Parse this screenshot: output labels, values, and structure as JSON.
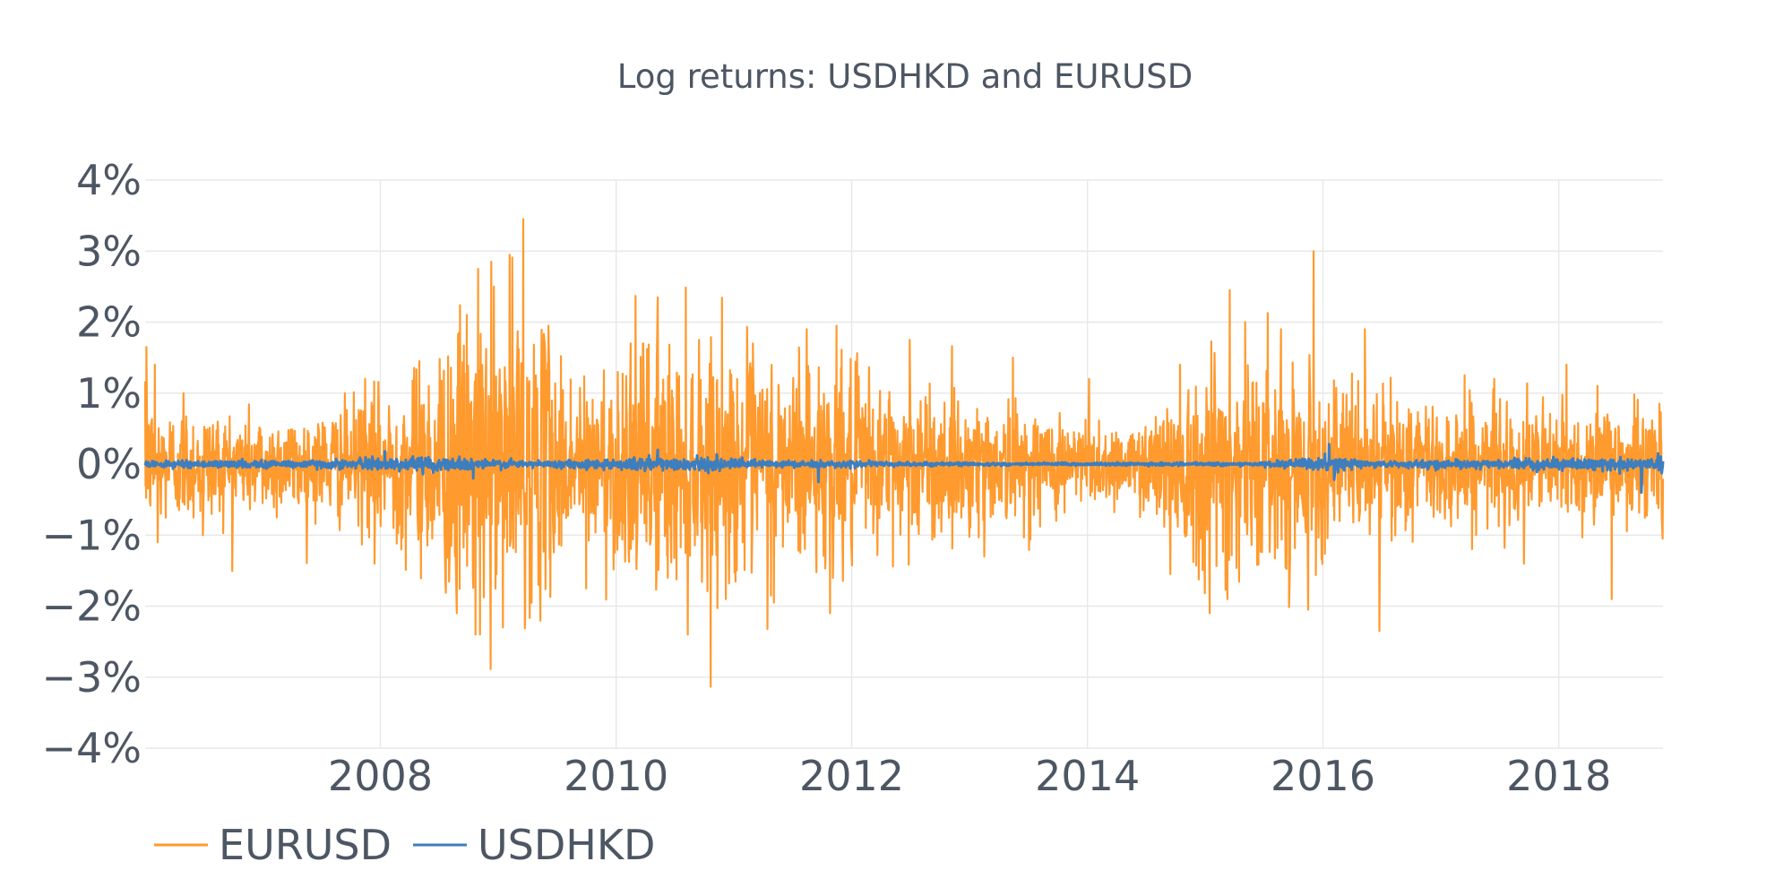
{
  "chart_data": {
    "type": "line",
    "title": "Log returns: USDHKD and EURUSD",
    "xlabel": "",
    "ylabel": "",
    "x_range": [
      "2006-01-02",
      "2018-11-20"
    ],
    "ylim": [
      -4,
      4
    ],
    "y_tick_values": [
      4,
      3,
      2,
      1,
      0,
      -1,
      -2,
      -3,
      -4
    ],
    "y_tick_labels": [
      "4%",
      "3%",
      "2%",
      "1%",
      "0%",
      "−1%",
      "−2%",
      "−3%",
      "−4%"
    ],
    "x_tick_values": [
      "2008-01-01",
      "2010-01-01",
      "2012-01-01",
      "2014-01-01",
      "2016-01-01",
      "2018-01-01"
    ],
    "x_tick_labels": [
      "2008",
      "2010",
      "2012",
      "2014",
      "2016",
      "2018"
    ],
    "grid": true,
    "legend_position": "bottom-left",
    "colors": {
      "EURUSD": "#ff9a2e",
      "USDHKD": "#3d7ebf"
    },
    "series": [
      {
        "name": "EURUSD",
        "vol_profile": [
          [
            "2006-01-02",
            0.42
          ],
          [
            "2007-06-01",
            0.33
          ],
          [
            "2008-03-01",
            0.55
          ],
          [
            "2008-09-01",
            0.95
          ],
          [
            "2009-03-01",
            1.05
          ],
          [
            "2009-09-01",
            0.6
          ],
          [
            "2010-05-01",
            0.85
          ],
          [
            "2011-08-01",
            0.75
          ],
          [
            "2012-06-01",
            0.55
          ],
          [
            "2013-06-01",
            0.4
          ],
          [
            "2014-06-01",
            0.25
          ],
          [
            "2015-01-15",
            0.8
          ],
          [
            "2015-08-01",
            0.65
          ],
          [
            "2016-06-01",
            0.5
          ],
          [
            "2017-06-01",
            0.4
          ],
          [
            "2018-11-20",
            0.38
          ]
        ],
        "spikes": [
          [
            "2006-01-06",
            1.65
          ],
          [
            "2006-02-01",
            1.4
          ],
          [
            "2006-02-10",
            -1.1
          ],
          [
            "2006-05-01",
            1.0
          ],
          [
            "2006-07-01",
            -1.0
          ],
          [
            "2007-11-15",
            1.2
          ],
          [
            "2007-12-15",
            -1.4
          ],
          [
            "2008-05-01",
            1.45
          ],
          [
            "2008-08-25",
            -2.1
          ],
          [
            "2008-09-25",
            2.1
          ],
          [
            "2008-10-22",
            -2.4
          ],
          [
            "2008-10-30",
            2.75
          ],
          [
            "2008-11-05",
            -2.4
          ],
          [
            "2008-12-10",
            2.85
          ],
          [
            "2008-12-18",
            2.5
          ],
          [
            "2009-01-15",
            -2.3
          ],
          [
            "2009-02-05",
            2.95
          ],
          [
            "2009-03-19",
            3.45
          ],
          [
            "2009-05-05",
            -1.7
          ],
          [
            "2009-06-05",
            1.95
          ],
          [
            "2009-09-30",
            -1.75
          ],
          [
            "2010-02-15",
            1.7
          ],
          [
            "2010-05-10",
            2.35
          ],
          [
            "2010-05-06",
            -1.6
          ],
          [
            "2010-06-10",
            -1.6
          ],
          [
            "2010-08-11",
            -2.4
          ],
          [
            "2010-09-15",
            1.75
          ],
          [
            "2011-03-01",
            1.7
          ],
          [
            "2011-05-05",
            -1.95
          ],
          [
            "2011-08-15",
            1.9
          ],
          [
            "2011-10-26",
            -2.1
          ],
          [
            "2011-11-15",
            1.95
          ],
          [
            "2012-06-29",
            1.75
          ],
          [
            "2013-02-15",
            -1.3
          ],
          [
            "2013-05-15",
            1.5
          ],
          [
            "2014-01-05",
            1.2
          ],
          [
            "2014-10-15",
            1.4
          ],
          [
            "2014-09-15",
            -1.55
          ],
          [
            "2015-01-15",
            -2.1
          ],
          [
            "2015-03-18",
            2.45
          ],
          [
            "2015-03-11",
            -1.9
          ],
          [
            "2015-05-05",
            2.0
          ],
          [
            "2015-08-24",
            1.9
          ],
          [
            "2015-12-03",
            3.0
          ],
          [
            "2015-11-15",
            -2.05
          ],
          [
            "2016-05-10",
            1.9
          ],
          [
            "2016-06-24",
            -2.35
          ],
          [
            "2017-03-15",
            1.25
          ],
          [
            "2017-06-15",
            1.2
          ],
          [
            "2017-09-15",
            -1.4
          ],
          [
            "2018-01-25",
            1.4
          ],
          [
            "2018-05-01",
            1.1
          ],
          [
            "2018-06-14",
            -1.9
          ],
          [
            "2018-11-10",
            0.85
          ],
          [
            "2018-11-18",
            -1.05
          ]
        ]
      },
      {
        "name": "USDHKD",
        "vol_profile": [
          [
            "2006-01-02",
            0.02
          ],
          [
            "2007-09-01",
            0.03
          ],
          [
            "2008-06-01",
            0.05
          ],
          [
            "2009-06-01",
            0.02
          ],
          [
            "2010-05-01",
            0.05
          ],
          [
            "2011-06-01",
            0.025
          ],
          [
            "2013-01-01",
            0.01
          ],
          [
            "2015-06-01",
            0.01
          ],
          [
            "2016-01-15",
            0.05
          ],
          [
            "2016-06-01",
            0.02
          ],
          [
            "2017-06-01",
            0.03
          ],
          [
            "2018-11-20",
            0.04
          ]
        ],
        "spikes": [
          [
            "2008-10-15",
            -0.2
          ],
          [
            "2008-01-15",
            0.18
          ],
          [
            "2010-05-10",
            0.2
          ],
          [
            "2011-09-20",
            -0.25
          ],
          [
            "2016-01-20",
            0.28
          ],
          [
            "2016-02-05",
            -0.22
          ],
          [
            "2018-09-15",
            -0.4
          ],
          [
            "2018-11-05",
            0.15
          ]
        ]
      }
    ]
  }
}
